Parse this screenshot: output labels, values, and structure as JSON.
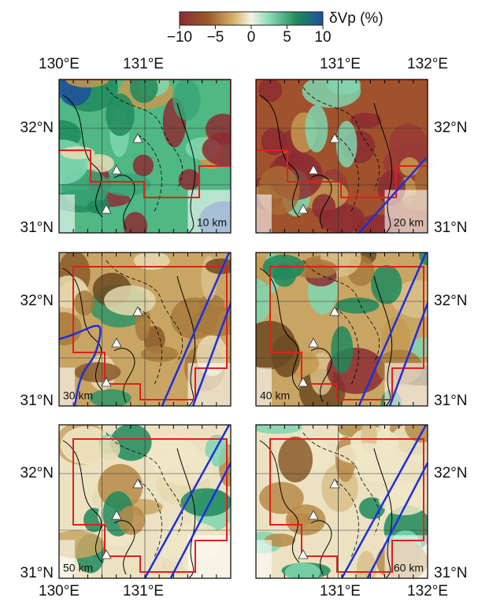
{
  "colorbar": {
    "label": "δVp (%)",
    "lim": [
      -10,
      10
    ],
    "ticks": [
      {
        "value": -10,
        "label": "−10"
      },
      {
        "value": -5,
        "label": "−5"
      },
      0,
      5,
      10
    ]
  },
  "top_axis": {
    "left": [
      "130°E",
      "131°E"
    ],
    "right": [
      "131°E",
      "132°E"
    ]
  },
  "bottom_axis": {
    "left": [
      "130°E",
      "131°E"
    ],
    "right": [
      "131°E",
      "132°E"
    ]
  },
  "lat_labels": [
    "32°N",
    "31°N"
  ],
  "panels": [
    {
      "depth": "10 km"
    },
    {
      "depth": "20 km"
    },
    {
      "depth": "30 km"
    },
    {
      "depth": "40 km"
    },
    {
      "depth": "50 km"
    },
    {
      "depth": "60 km"
    }
  ]
}
